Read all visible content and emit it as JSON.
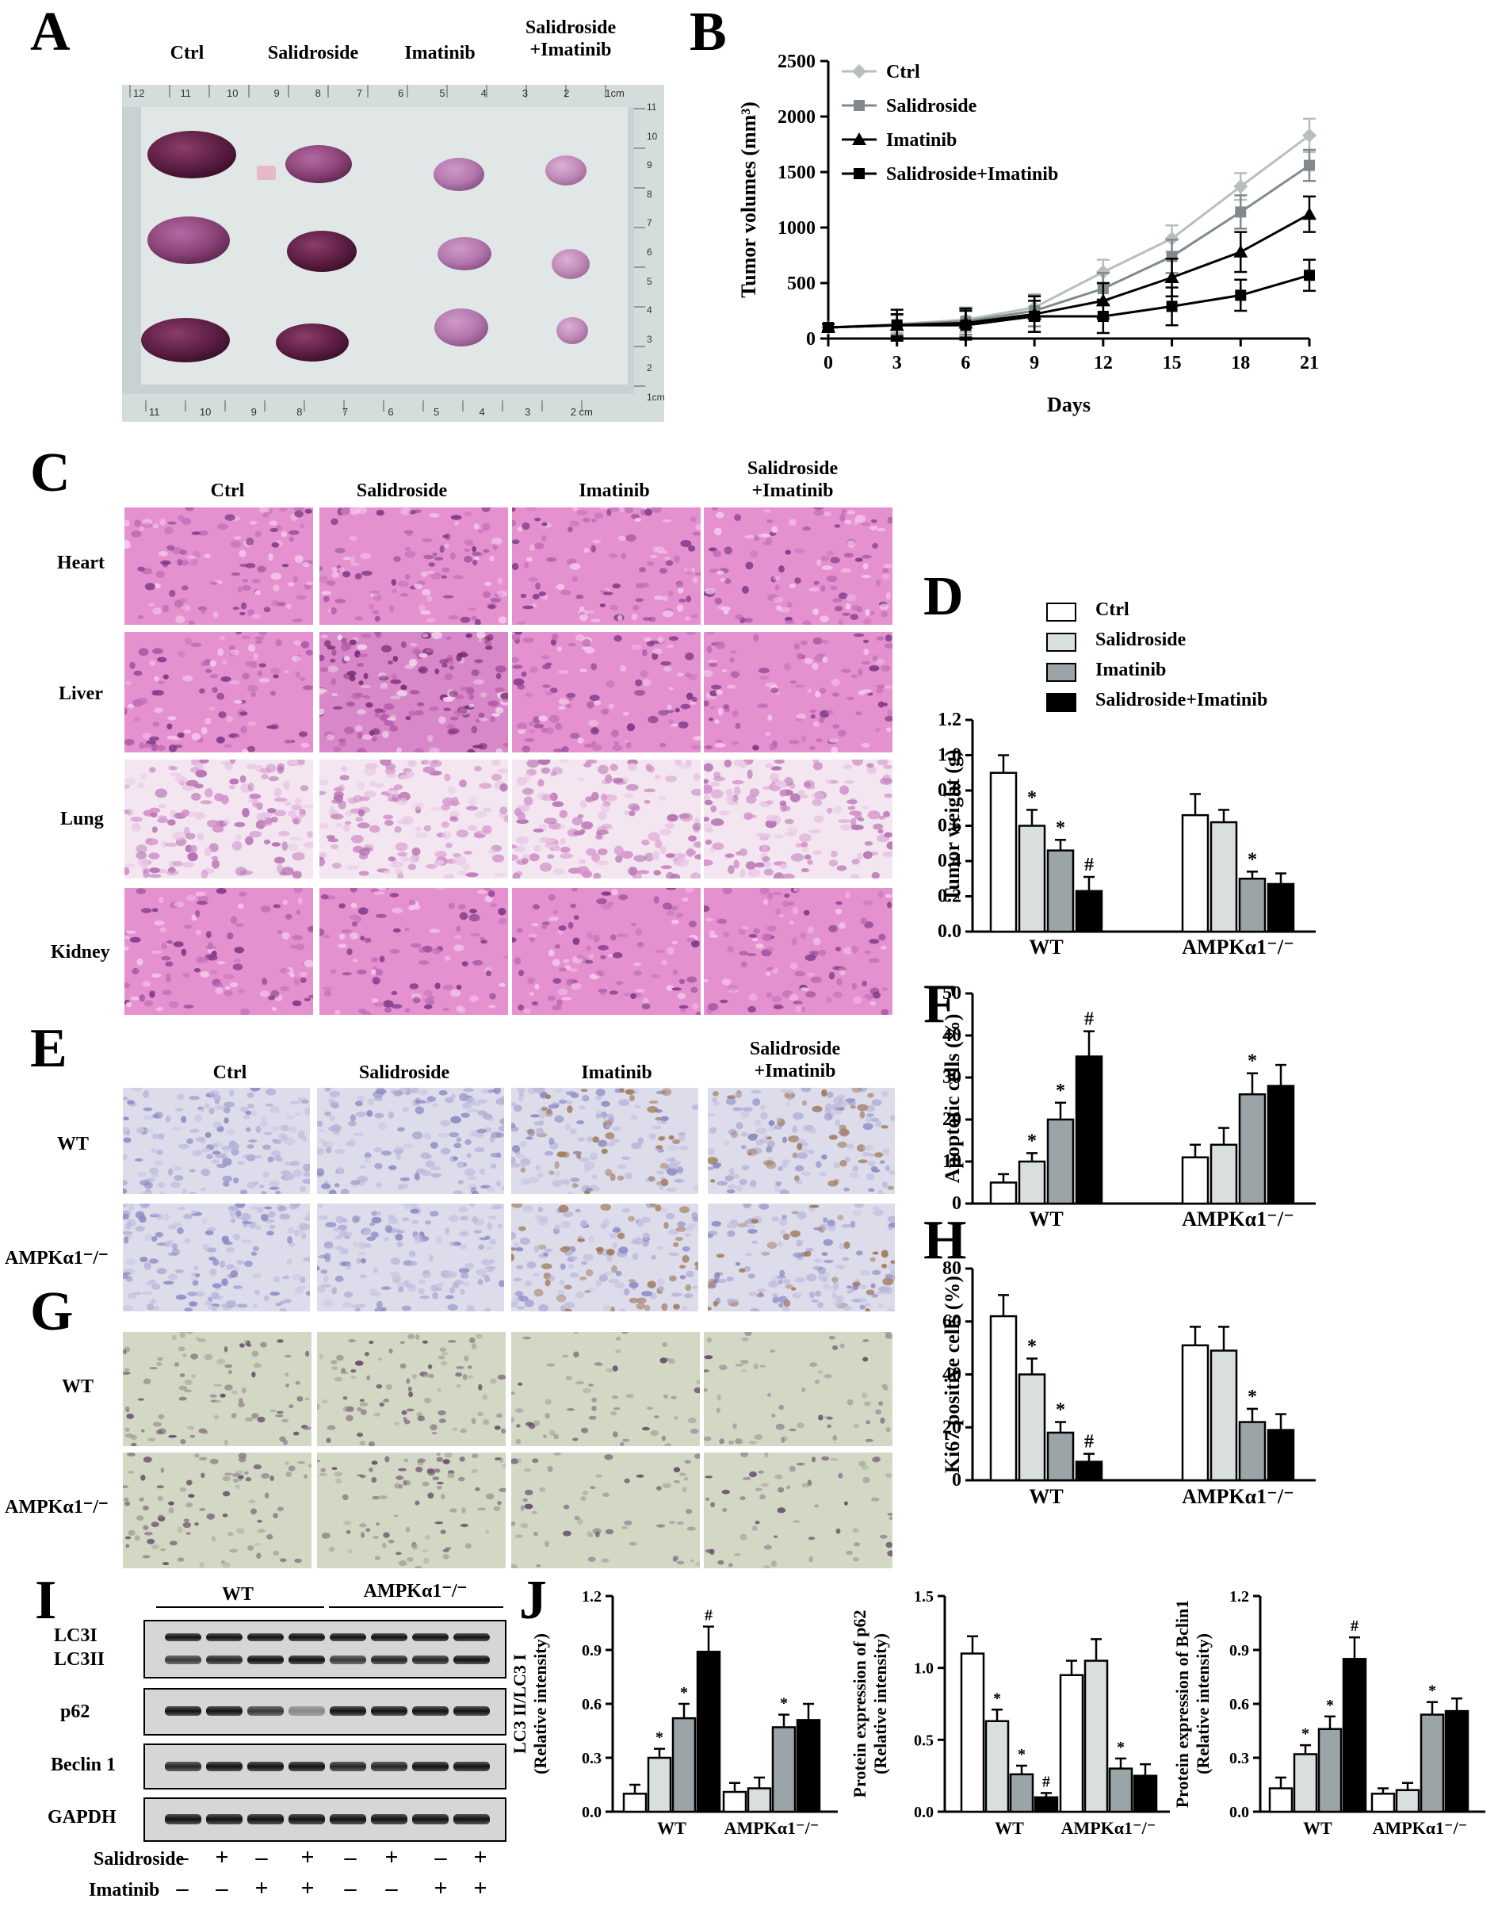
{
  "panel_letters": {
    "A": "A",
    "B": "B",
    "C": "C",
    "D": "D",
    "E": "E",
    "F": "F",
    "G": "G",
    "H": "H",
    "I": "I",
    "J": "J"
  },
  "panel_a": {
    "columns": [
      "Ctrl",
      "Salidroside",
      "Imatinib",
      "Salidroside\n+Imatinib"
    ],
    "ruler_top_numbers": [
      "12",
      "11",
      "10",
      "9",
      "8",
      "7",
      "6",
      "5",
      "4",
      "3",
      "2",
      "1cm"
    ],
    "ruler_bottom_numbers": [
      "11",
      "10",
      "9",
      "8",
      "7",
      "6",
      "5",
      "4",
      "3",
      "2 cm"
    ],
    "ruler_right_numbers": [
      "11",
      "10",
      "9",
      "8",
      "7",
      "6",
      "5",
      "4",
      "3",
      "2",
      "1cm"
    ]
  },
  "panel_c": {
    "columns": [
      "Ctrl",
      "Salidroside",
      "Imatinib",
      "Salidroside\n+Imatinib"
    ],
    "rows": [
      "Heart",
      "Liver",
      "Lung",
      "Kidney"
    ]
  },
  "panel_e": {
    "columns": [
      "Ctrl",
      "Salidroside",
      "Imatinib",
      "Salidroside\n+Imatinib"
    ],
    "rows": [
      "WT",
      "AMPKα1⁻/⁻"
    ]
  },
  "panel_g": {
    "rows": [
      "WT",
      "AMPKα1⁻/⁻"
    ]
  },
  "panel_i": {
    "groups": [
      "WT",
      "AMPKα1⁻/⁻"
    ],
    "bands": [
      "LC3I",
      "LC3II",
      "p62",
      "Beclin 1",
      "GAPDH"
    ],
    "treatments": [
      {
        "name": "Salidroside",
        "signs": [
          "–",
          "+",
          "–",
          "+",
          "–",
          "+",
          "–",
          "+"
        ]
      },
      {
        "name": "Imatinib",
        "signs": [
          "–",
          "–",
          "+",
          "+",
          "–",
          "–",
          "+",
          "+"
        ]
      }
    ]
  },
  "legend": {
    "entries": [
      "Ctrl",
      "Salidroside",
      "Imatinib",
      "Salidroside+Imatinib"
    ],
    "colors": [
      "#ffffff",
      "#d9dfdf",
      "#9ba5a7",
      "#000000"
    ]
  },
  "chart_data": [
    {
      "id": "B",
      "type": "line",
      "xlabel": "Days",
      "ylabel": "Tumor volumes (mm³)",
      "x": [
        0,
        3,
        6,
        9,
        12,
        15,
        18,
        21
      ],
      "xlim": [
        0,
        21
      ],
      "ylim": [
        0,
        2500
      ],
      "yticks": [
        0,
        500,
        1000,
        1500,
        2000,
        2500
      ],
      "legend_position": "top-left",
      "series": [
        {
          "name": "Ctrl",
          "marker": "diamond",
          "color": "#b8bebe",
          "values": [
            100,
            130,
            170,
            280,
            600,
            900,
            1370,
            1830
          ],
          "errors": [
            30,
            80,
            110,
            120,
            110,
            120,
            120,
            150
          ]
        },
        {
          "name": "Salidroside",
          "marker": "square",
          "color": "#808a8c",
          "values": [
            100,
            125,
            155,
            250,
            450,
            740,
            1140,
            1560
          ],
          "errors": [
            30,
            90,
            120,
            140,
            140,
            150,
            150,
            140
          ]
        },
        {
          "name": "Imatinib",
          "marker": "triangle",
          "color": "#000000",
          "values": [
            100,
            120,
            140,
            220,
            340,
            550,
            780,
            1120
          ],
          "errors": [
            30,
            100,
            130,
            160,
            160,
            170,
            180,
            160
          ]
        },
        {
          "name": "Salidroside+Imatinib",
          "marker": "square",
          "color": "#000000",
          "values": [
            100,
            120,
            120,
            200,
            200,
            290,
            390,
            570
          ],
          "errors": [
            30,
            140,
            130,
            140,
            150,
            170,
            140,
            140
          ]
        }
      ]
    },
    {
      "id": "D",
      "type": "bar",
      "ylabel": "Tumor weight (g)",
      "categories": [
        "WT",
        "AMPKα1⁻/⁻"
      ],
      "ylim": [
        0,
        1.2
      ],
      "yticks": [
        "0.0",
        "0.2",
        "0.4",
        "0.6",
        "0.8",
        "1.0",
        "1.2"
      ],
      "series": [
        {
          "name": "Ctrl",
          "values": [
            0.9,
            0.66
          ],
          "errors": [
            0.1,
            0.12
          ]
        },
        {
          "name": "Salidroside",
          "values": [
            0.6,
            0.62
          ],
          "errors": [
            0.09,
            0.07
          ]
        },
        {
          "name": "Imatinib",
          "values": [
            0.46,
            0.3
          ],
          "errors": [
            0.06,
            0.04
          ]
        },
        {
          "name": "Salidroside+Imatinib",
          "values": [
            0.23,
            0.27
          ],
          "errors": [
            0.08,
            0.06
          ]
        }
      ],
      "annotations": [
        [
          "",
          "*",
          "*",
          "#"
        ],
        [
          "",
          "",
          "*",
          ""
        ]
      ]
    },
    {
      "id": "F",
      "type": "bar",
      "ylabel": "Apoptotic cells (%)",
      "categories": [
        "WT",
        "AMPKα1⁻/⁻"
      ],
      "ylim": [
        0,
        50
      ],
      "yticks": [
        "0",
        "10",
        "20",
        "30",
        "40",
        "50"
      ],
      "series": [
        {
          "name": "Ctrl",
          "values": [
            5,
            11
          ],
          "errors": [
            2,
            3
          ]
        },
        {
          "name": "Salidroside",
          "values": [
            10,
            14
          ],
          "errors": [
            2,
            4
          ]
        },
        {
          "name": "Imatinib",
          "values": [
            20,
            26
          ],
          "errors": [
            4,
            5
          ]
        },
        {
          "name": "Salidroside+Imatinib",
          "values": [
            35,
            28
          ],
          "errors": [
            6,
            5
          ]
        }
      ],
      "annotations": [
        [
          "",
          "*",
          "*",
          "#"
        ],
        [
          "",
          "",
          "*",
          ""
        ]
      ]
    },
    {
      "id": "H",
      "type": "bar",
      "ylabel": "Ki67 positive cells (%)",
      "categories": [
        "WT",
        "AMPKα1⁻/⁻"
      ],
      "ylim": [
        0,
        80
      ],
      "yticks": [
        "0",
        "20",
        "40",
        "60",
        "80"
      ],
      "series": [
        {
          "name": "Ctrl",
          "values": [
            62,
            51
          ],
          "errors": [
            8,
            7
          ]
        },
        {
          "name": "Salidroside",
          "values": [
            40,
            49
          ],
          "errors": [
            6,
            9
          ]
        },
        {
          "name": "Imatinib",
          "values": [
            18,
            22
          ],
          "errors": [
            4,
            5
          ]
        },
        {
          "name": "Salidroside+Imatinib",
          "values": [
            7,
            19
          ],
          "errors": [
            3,
            6
          ]
        }
      ],
      "annotations": [
        [
          "",
          "*",
          "*",
          "#"
        ],
        [
          "",
          "",
          "*",
          ""
        ]
      ]
    },
    {
      "id": "J1",
      "type": "bar",
      "ylabel": "LC3 II/LC3 I\n(Relative intensity)",
      "categories": [
        "WT",
        "AMPKα1⁻/⁻"
      ],
      "ylim": [
        0,
        1.2
      ],
      "yticks": [
        "0.0",
        "0.3",
        "0.6",
        "0.9",
        "1.2"
      ],
      "series": [
        {
          "name": "Ctrl",
          "values": [
            0.1,
            0.11
          ],
          "errors": [
            0.05,
            0.05
          ]
        },
        {
          "name": "Salidroside",
          "values": [
            0.3,
            0.13
          ],
          "errors": [
            0.05,
            0.06
          ]
        },
        {
          "name": "Imatinib",
          "values": [
            0.52,
            0.47
          ],
          "errors": [
            0.08,
            0.07
          ]
        },
        {
          "name": "Salidroside+Imatinib",
          "values": [
            0.89,
            0.51
          ],
          "errors": [
            0.14,
            0.09
          ]
        }
      ],
      "annotations": [
        [
          "",
          "*",
          "*",
          "#"
        ],
        [
          "",
          "",
          "*",
          ""
        ]
      ]
    },
    {
      "id": "J2",
      "type": "bar",
      "ylabel": "Protein expression of p62\n(Relative intensity)",
      "categories": [
        "WT",
        "AMPKα1⁻/⁻"
      ],
      "ylim": [
        0,
        1.5
      ],
      "yticks": [
        "0.0",
        "0.5",
        "1.0",
        "1.5"
      ],
      "series": [
        {
          "name": "Ctrl",
          "values": [
            1.1,
            0.95
          ],
          "errors": [
            0.12,
            0.1
          ]
        },
        {
          "name": "Salidroside",
          "values": [
            0.63,
            1.05
          ],
          "errors": [
            0.08,
            0.15
          ]
        },
        {
          "name": "Imatinib",
          "values": [
            0.26,
            0.3
          ],
          "errors": [
            0.06,
            0.07
          ]
        },
        {
          "name": "Salidroside+Imatinib",
          "values": [
            0.1,
            0.25
          ],
          "errors": [
            0.03,
            0.08
          ]
        }
      ],
      "annotations": [
        [
          "",
          "*",
          "*",
          "#"
        ],
        [
          "",
          "",
          "*",
          ""
        ]
      ]
    },
    {
      "id": "J3",
      "type": "bar",
      "ylabel": "Protein expression of Bclin1\n(Relative intensity)",
      "categories": [
        "WT",
        "AMPKα1⁻/⁻"
      ],
      "ylim": [
        0,
        1.2
      ],
      "yticks": [
        "0.0",
        "0.3",
        "0.6",
        "0.9",
        "1.2"
      ],
      "series": [
        {
          "name": "Ctrl",
          "values": [
            0.13,
            0.1
          ],
          "errors": [
            0.06,
            0.03
          ]
        },
        {
          "name": "Salidroside",
          "values": [
            0.32,
            0.12
          ],
          "errors": [
            0.05,
            0.04
          ]
        },
        {
          "name": "Imatinib",
          "values": [
            0.46,
            0.54
          ],
          "errors": [
            0.07,
            0.07
          ]
        },
        {
          "name": "Salidroside+Imatinib",
          "values": [
            0.85,
            0.56
          ],
          "errors": [
            0.12,
            0.07
          ]
        }
      ],
      "annotations": [
        [
          "",
          "*",
          "*",
          "#"
        ],
        [
          "",
          "",
          "*",
          ""
        ]
      ]
    }
  ]
}
